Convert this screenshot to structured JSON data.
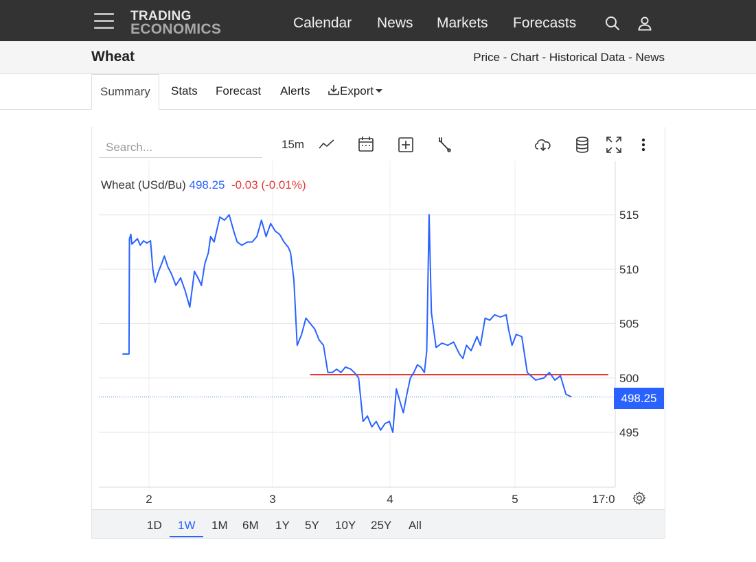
{
  "nav": {
    "logo_line1": "TRADING",
    "logo_line2": "ECONOMICS",
    "links": [
      "Calendar",
      "News",
      "Markets",
      "Forecasts"
    ]
  },
  "subheader": {
    "title": "Wheat",
    "links": [
      "Price",
      "Chart",
      "Historical Data",
      "News"
    ],
    "separator": " - "
  },
  "tabs": {
    "summary": "Summary",
    "stats": "Stats",
    "forecast": "Forecast",
    "alerts": "Alerts",
    "export": "Export"
  },
  "toolbar": {
    "search_placeholder": "Search...",
    "interval": "15m"
  },
  "legend": {
    "name": "Wheat (USd/Bu)",
    "price": "498.25",
    "change": "-0.03 (-0.01%)"
  },
  "price_tag": "498.25",
  "ranges": [
    "1D",
    "1W",
    "1M",
    "6M",
    "1Y",
    "5Y",
    "10Y",
    "25Y",
    "All"
  ],
  "selected_range": "1W",
  "colors": {
    "line": "#2962ff",
    "reference_line": "#e53935",
    "nav_bg": "#333333"
  },
  "icons": [
    "menu-icon",
    "search-icon",
    "user-icon",
    "line-chart-icon",
    "calendar-icon",
    "plus-square-icon",
    "wrench-icon",
    "cloud-download-icon",
    "database-icon",
    "fullscreen-icon",
    "more-vert-icon",
    "download-icon",
    "settings-gear-icon"
  ],
  "chart_data": {
    "type": "line",
    "title": "",
    "xlabel": "",
    "ylabel": "",
    "y_ticks": [
      495,
      500,
      505,
      510,
      515
    ],
    "ylim": [
      490,
      519
    ],
    "x_ticks": [
      "2",
      "3",
      "4",
      "5",
      "17:0"
    ],
    "grid": true,
    "last_value": 498.25,
    "reference_line": {
      "value": 500.3,
      "from_x": 1.98,
      "to_x": 4.8
    },
    "series": [
      {
        "values": [
          [
            0.0,
            502.2
          ],
          [
            0.14,
            502.2
          ],
          [
            0.15,
            512.8
          ],
          [
            0.18,
            513.2
          ],
          [
            0.2,
            512.3
          ],
          [
            0.25,
            512.5
          ],
          [
            0.32,
            512.8
          ],
          [
            0.38,
            512.2
          ],
          [
            0.45,
            512.6
          ],
          [
            0.52,
            512.4
          ],
          [
            0.58,
            512.6
          ],
          [
            0.6,
            510.0
          ],
          [
            0.62,
            508.8
          ],
          [
            0.65,
            509.8
          ],
          [
            0.68,
            510.6
          ],
          [
            0.7,
            511.2
          ],
          [
            0.73,
            510.2
          ],
          [
            0.76,
            509.6
          ],
          [
            0.8,
            508.5
          ],
          [
            0.84,
            509.2
          ],
          [
            0.88,
            508.0
          ],
          [
            0.92,
            506.5
          ],
          [
            0.96,
            509.8
          ],
          [
            1.0,
            509.0
          ],
          [
            1.02,
            508.5
          ],
          [
            1.05,
            510.5
          ],
          [
            1.08,
            511.5
          ],
          [
            1.1,
            513.0
          ],
          [
            1.13,
            512.5
          ],
          [
            1.18,
            514.8
          ],
          [
            1.22,
            514.5
          ],
          [
            1.26,
            515.0
          ],
          [
            1.3,
            513.5
          ],
          [
            1.33,
            512.5
          ],
          [
            1.37,
            512.2
          ],
          [
            1.42,
            512.5
          ],
          [
            1.46,
            512.5
          ],
          [
            1.5,
            513.0
          ],
          [
            1.54,
            514.5
          ],
          [
            1.58,
            513.0
          ],
          [
            1.62,
            514.2
          ],
          [
            1.66,
            513.5
          ],
          [
            1.7,
            513.2
          ],
          [
            1.74,
            512.5
          ],
          [
            1.78,
            512.0
          ],
          [
            1.8,
            511.5
          ],
          [
            1.83,
            509.0
          ],
          [
            1.86,
            503.0
          ],
          [
            1.9,
            504.0
          ],
          [
            1.94,
            505.5
          ],
          [
            1.98,
            505.0
          ],
          [
            2.02,
            504.5
          ],
          [
            2.06,
            503.5
          ],
          [
            2.1,
            503.0
          ],
          [
            2.14,
            500.5
          ],
          [
            2.18,
            500.5
          ],
          [
            2.22,
            500.8
          ],
          [
            2.26,
            500.5
          ],
          [
            2.3,
            501.0
          ],
          [
            2.35,
            500.8
          ],
          [
            2.38,
            500.5
          ],
          [
            2.42,
            500.0
          ],
          [
            2.46,
            496.0
          ],
          [
            2.5,
            496.5
          ],
          [
            2.54,
            495.5
          ],
          [
            2.58,
            496.0
          ],
          [
            2.62,
            495.2
          ],
          [
            2.66,
            495.8
          ],
          [
            2.7,
            496.0
          ],
          [
            2.73,
            495.0
          ],
          [
            2.76,
            499.0
          ],
          [
            2.8,
            497.5
          ],
          [
            2.82,
            496.8
          ],
          [
            2.85,
            498.5
          ],
          [
            2.88,
            500.0
          ],
          [
            2.91,
            500.5
          ],
          [
            2.94,
            501.2
          ],
          [
            2.97,
            501.0
          ],
          [
            3.0,
            500.5
          ],
          [
            3.02,
            502.5
          ],
          [
            3.04,
            515.0
          ],
          [
            3.06,
            506.0
          ],
          [
            3.1,
            502.8
          ],
          [
            3.15,
            503.2
          ],
          [
            3.2,
            503.0
          ],
          [
            3.25,
            503.3
          ],
          [
            3.3,
            502.2
          ],
          [
            3.33,
            501.8
          ],
          [
            3.36,
            503.0
          ],
          [
            3.4,
            502.5
          ],
          [
            3.45,
            503.8
          ],
          [
            3.48,
            503.0
          ],
          [
            3.52,
            505.5
          ],
          [
            3.56,
            505.3
          ],
          [
            3.6,
            505.8
          ],
          [
            3.65,
            505.6
          ],
          [
            3.7,
            505.8
          ],
          [
            3.72,
            504.5
          ],
          [
            3.75,
            503.0
          ],
          [
            3.78,
            504.0
          ],
          [
            3.8,
            503.8
          ],
          [
            3.82,
            500.5
          ],
          [
            3.85,
            499.8
          ],
          [
            3.88,
            500.0
          ],
          [
            3.9,
            500.5
          ],
          [
            3.92,
            499.8
          ],
          [
            3.94,
            500.2
          ],
          [
            3.96,
            498.5
          ],
          [
            3.98,
            498.25
          ]
        ]
      }
    ]
  }
}
